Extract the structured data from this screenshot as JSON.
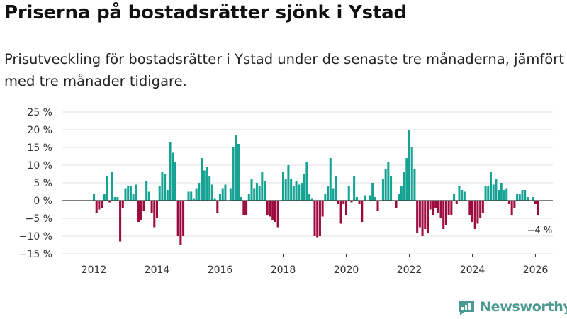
{
  "title": "Priserna på bostadsrätter sjönk i Ystad",
  "subtitle": "Prisutveckling för bostadsrätter i Ystad under de senaste tre månaderna, jämfört med tre månader tidigare.",
  "colors": {
    "positive": "#16a394",
    "negative": "#9c0a3e",
    "grid": "#e1e1e1",
    "axis": "#333333",
    "brand": "#4a9a92"
  },
  "brand": {
    "name": "Newsworthy",
    "icon": "newsworthy-logo-icon"
  },
  "chart_data": {
    "type": "bar",
    "title": "Priserna på bostadsrätter sjönk i Ystad",
    "ylabel": "",
    "xlabel": "",
    "ylim": [
      -15,
      25
    ],
    "xlim": [
      2011.0,
      2026.55
    ],
    "grid": true,
    "y_ticks": [
      25,
      20,
      15,
      10,
      5,
      0,
      -5,
      -10,
      -15
    ],
    "y_tick_labels": [
      "25 %",
      "20 %",
      "15 %",
      "10 %",
      "5 %",
      "0 %",
      "−5 %",
      "−10 %",
      "−15 %"
    ],
    "x_ticks": [
      2012,
      2014,
      2016,
      2018,
      2020,
      2022,
      2024,
      2026
    ],
    "x_tick_labels": [
      "2012",
      "2014",
      "2016",
      "2018",
      "2020",
      "2022",
      "2024",
      "2026"
    ],
    "start": {
      "year": 2012,
      "month": 1
    },
    "values": [
      2,
      -3.5,
      -2.5,
      -2,
      2,
      7,
      -0.5,
      8,
      1,
      1,
      -11.5,
      -2,
      3.5,
      4,
      4,
      2,
      4.5,
      -6,
      -5.5,
      -3,
      5.5,
      2.5,
      -3.5,
      -7.5,
      -5,
      4,
      8,
      7.5,
      3,
      16.5,
      13.5,
      11,
      -10,
      -12.5,
      -10,
      0,
      2.5,
      2.5,
      0.5,
      3.5,
      5,
      12,
      8.5,
      9.5,
      7,
      4.5,
      0.5,
      -3.5,
      2,
      3.5,
      4.5,
      0,
      3.5,
      15,
      18.5,
      16,
      1,
      -4,
      -4,
      2,
      6,
      3.5,
      5,
      4,
      8,
      5.5,
      -4,
      -4.5,
      -5.5,
      -6,
      -7.5,
      0,
      8,
      6,
      10,
      6,
      4,
      5.5,
      4.5,
      5,
      7.5,
      11,
      2,
      0.5,
      -10,
      -10.5,
      -10,
      -4.5,
      2,
      4,
      12,
      3.5,
      7,
      -1,
      -6.5,
      -1,
      -4,
      4,
      -0.5,
      7,
      1,
      -1,
      -6,
      1.5,
      0,
      1.5,
      5,
      1,
      -3,
      0,
      6,
      9,
      11,
      7,
      0,
      -2,
      2,
      4,
      8,
      12,
      20,
      15,
      9,
      -9,
      -7.5,
      -10,
      -8,
      -9,
      -2.5,
      -4,
      -2,
      -3.5,
      -5,
      -8,
      -7,
      -4,
      -4,
      2,
      -1,
      4,
      3,
      2.5,
      0,
      -4,
      -6,
      -8,
      -6.5,
      -5,
      -3.5,
      4,
      4,
      8,
      4.5,
      6,
      3,
      5,
      3,
      3.5,
      -1,
      -4,
      -2,
      2,
      2,
      3,
      3,
      1,
      0,
      1,
      -1,
      -4
    ],
    "annotation": {
      "text": "−4 %",
      "target": "last"
    }
  }
}
